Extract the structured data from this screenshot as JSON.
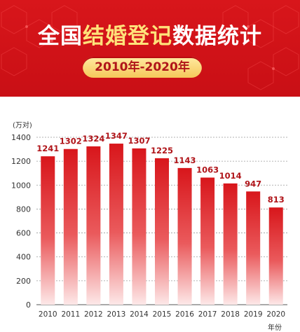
{
  "header": {
    "title_part1": "全国",
    "title_highlight": "结婚登记",
    "title_part2": "数据统计",
    "date_range": "2010年-2020年"
  },
  "colors": {
    "banner_red": "#d0121a",
    "highlight_yellow": "#ffe27a",
    "pill_gold": "#f5c85a",
    "bar_red": "#d8161b",
    "label_red": "#b0151a"
  },
  "chart_data": {
    "type": "bar",
    "ylabel": "(万对)",
    "xlabel": "年份",
    "categories": [
      "2010",
      "2011",
      "2012",
      "2013",
      "2014",
      "2015",
      "2016",
      "2017",
      "2018",
      "2019",
      "2020"
    ],
    "values": [
      1241,
      1302,
      1324,
      1347,
      1307,
      1225,
      1143,
      1063,
      1014,
      947,
      813
    ],
    "yticks": [
      0,
      200,
      400,
      600,
      800,
      1000,
      1200,
      1400
    ],
    "ylim": [
      0,
      1400
    ],
    "grid": true
  }
}
